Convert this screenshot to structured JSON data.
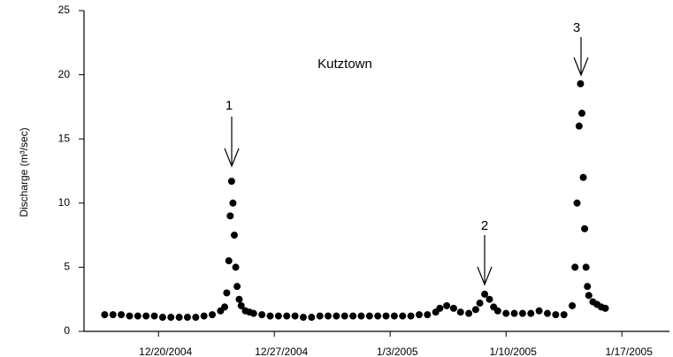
{
  "chart_data": {
    "type": "scatter",
    "title": "Kutztown",
    "y_label": "Discharge (m³/sec)",
    "color": "#000000",
    "x": [
      "2004-12-16T18:00",
      "2004-12-17T06:00",
      "2004-12-17T18:00",
      "2004-12-18T06:00",
      "2004-12-18T18:00",
      "2004-12-19T06:00",
      "2004-12-19T18:00",
      "2004-12-20T06:00",
      "2004-12-20T18:00",
      "2004-12-21T06:00",
      "2004-12-21T18:00",
      "2004-12-22T06:00",
      "2004-12-22T18:00",
      "2004-12-23T06:00",
      "2004-12-23T18:00",
      "2004-12-24T00:00",
      "2004-12-24T03:00",
      "2004-12-24T06:00",
      "2004-12-24T08:00",
      "2004-12-24T10:00",
      "2004-12-24T12:00",
      "2004-12-24T14:00",
      "2004-12-24T16:00",
      "2004-12-24T18:00",
      "2004-12-24T21:00",
      "2004-12-25T00:00",
      "2004-12-25T06:00",
      "2004-12-25T12:00",
      "2004-12-25T18:00",
      "2004-12-26T06:00",
      "2004-12-26T18:00",
      "2004-12-27T06:00",
      "2004-12-27T18:00",
      "2004-12-28T06:00",
      "2004-12-28T18:00",
      "2004-12-29T06:00",
      "2004-12-29T18:00",
      "2004-12-30T06:00",
      "2004-12-30T18:00",
      "2004-12-31T06:00",
      "2004-12-31T18:00",
      "2005-01-01T06:00",
      "2005-01-01T18:00",
      "2005-01-02T06:00",
      "2005-01-02T18:00",
      "2005-01-03T06:00",
      "2005-01-03T18:00",
      "2005-01-04T06:00",
      "2005-01-04T18:00",
      "2005-01-05T06:00",
      "2005-01-05T18:00",
      "2005-01-06T00:00",
      "2005-01-06T10:00",
      "2005-01-06T20:00",
      "2005-01-07T06:00",
      "2005-01-07T18:00",
      "2005-01-08T04:00",
      "2005-01-08T10:00",
      "2005-01-08T17:00",
      "2005-01-09T00:00",
      "2005-01-09T06:00",
      "2005-01-09T12:00",
      "2005-01-10T00:00",
      "2005-01-10T12:00",
      "2005-01-11T00:00",
      "2005-01-11T12:00",
      "2005-01-12T00:00",
      "2005-01-12T12:00",
      "2005-01-13T00:00",
      "2005-01-13T12:00",
      "2005-01-14T00:00",
      "2005-01-14T04:00",
      "2005-01-14T07:00",
      "2005-01-14T10:00",
      "2005-01-14T12:00",
      "2005-01-14T14:00",
      "2005-01-14T16:00",
      "2005-01-14T18:00",
      "2005-01-14T20:00",
      "2005-01-14T22:00",
      "2005-01-15T00:00",
      "2005-01-15T06:00",
      "2005-01-15T12:00",
      "2005-01-15T18:00",
      "2005-01-16T00:00"
    ],
    "values": [
      1.3,
      1.3,
      1.3,
      1.2,
      1.2,
      1.2,
      1.2,
      1.1,
      1.1,
      1.1,
      1.1,
      1.1,
      1.2,
      1.3,
      1.6,
      1.9,
      3.0,
      5.5,
      9.0,
      11.7,
      10.0,
      7.5,
      5.0,
      3.5,
      2.5,
      2.0,
      1.6,
      1.5,
      1.4,
      1.3,
      1.2,
      1.2,
      1.2,
      1.2,
      1.1,
      1.1,
      1.2,
      1.2,
      1.2,
      1.2,
      1.2,
      1.2,
      1.2,
      1.2,
      1.2,
      1.2,
      1.2,
      1.2,
      1.3,
      1.3,
      1.5,
      1.8,
      2.0,
      1.8,
      1.5,
      1.4,
      1.7,
      2.2,
      2.9,
      2.5,
      1.9,
      1.6,
      1.4,
      1.4,
      1.4,
      1.4,
      1.6,
      1.4,
      1.3,
      1.3,
      2.0,
      5.0,
      10.0,
      16.0,
      19.3,
      17.0,
      12.0,
      8.0,
      5.0,
      3.5,
      2.8,
      2.3,
      2.1,
      1.9,
      1.8
    ],
    "xlim": [
      "2004-12-15T12:00",
      "2005-01-19T21:00"
    ],
    "xticks": [
      {
        "value": "2004-12-20T00:00",
        "label": "12/20/2004"
      },
      {
        "value": "2004-12-27T00:00",
        "label": "12/27/2004"
      },
      {
        "value": "2005-01-03T00:00",
        "label": "1/3/2005"
      },
      {
        "value": "2005-01-10T00:00",
        "label": "1/10/2005"
      },
      {
        "value": "2005-01-17T00:00",
        "label": "1/17/2005"
      }
    ],
    "ylim": [
      0,
      25
    ],
    "yticks": [
      0,
      5,
      10,
      15,
      20,
      25
    ],
    "annotations": [
      "1",
      "2",
      "3"
    ]
  }
}
